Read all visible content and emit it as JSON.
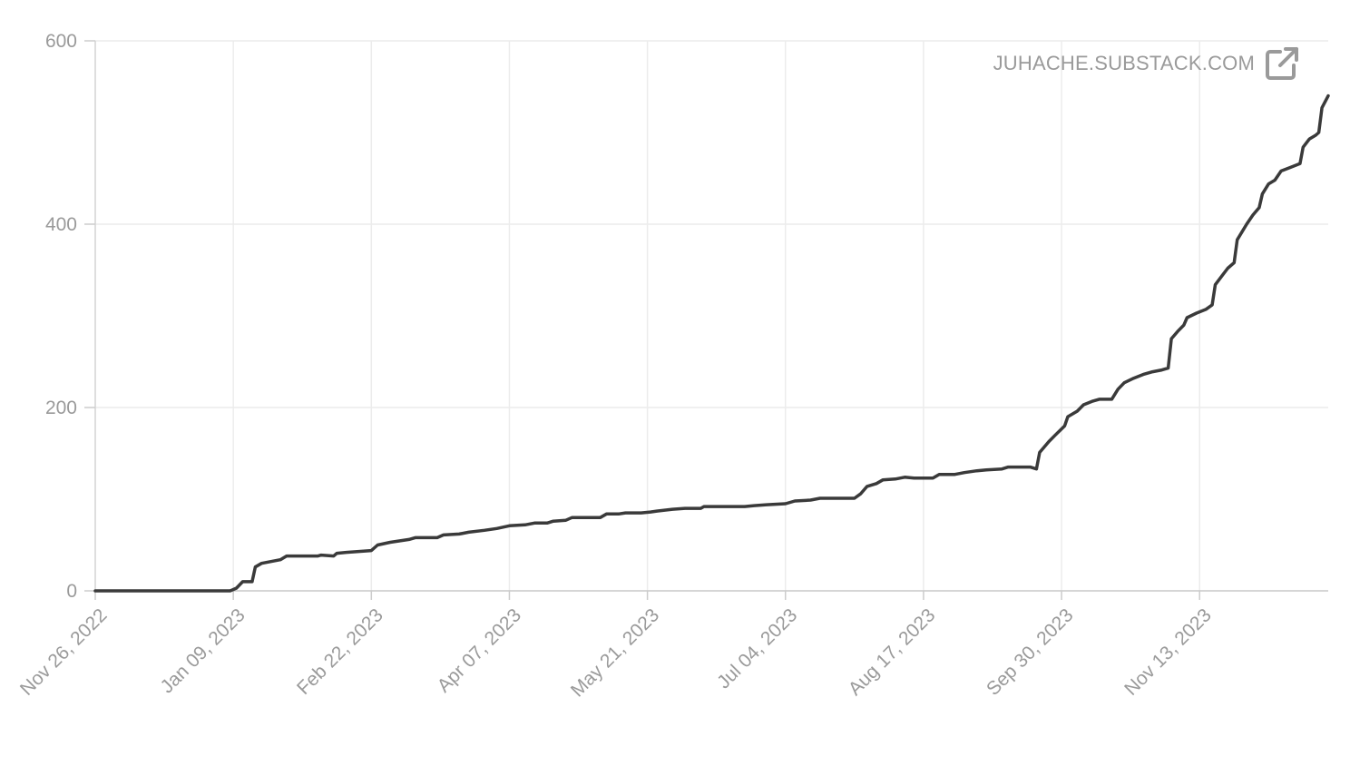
{
  "watermark": {
    "text": "JUHACHE.SUBSTACK.COM",
    "icon": "external-link-icon"
  },
  "chart_data": {
    "type": "line",
    "xlabel": "",
    "ylabel": "",
    "ylim": [
      0,
      600
    ],
    "yticks": [
      0,
      200,
      400,
      600
    ],
    "ytick_labels": [
      "0",
      "200",
      "400",
      "600"
    ],
    "xlim": [
      "2022-11-26",
      "2023-12-24"
    ],
    "xticks": [
      "2022-11-26",
      "2023-01-09",
      "2023-02-22",
      "2023-04-07",
      "2023-05-21",
      "2023-07-04",
      "2023-08-17",
      "2023-09-30",
      "2023-11-13"
    ],
    "xtick_labels": [
      "Nov 26, 2022",
      "Jan 09, 2023",
      "Feb 22, 2023",
      "Apr 07, 2023",
      "May 21, 2023",
      "Jul 04, 2023",
      "Aug 17, 2023",
      "Sep 30, 2023",
      "Nov 13, 2023"
    ],
    "grid": true,
    "line_color": "#3a3a3a",
    "series": [
      {
        "points": [
          [
            "2022-11-26",
            0
          ],
          [
            "2023-01-08",
            0
          ],
          [
            "2023-01-10",
            3
          ],
          [
            "2023-01-12",
            10
          ],
          [
            "2023-01-15",
            10
          ],
          [
            "2023-01-16",
            26
          ],
          [
            "2023-01-18",
            30
          ],
          [
            "2023-01-24",
            34
          ],
          [
            "2023-01-26",
            38
          ],
          [
            "2023-02-05",
            38
          ],
          [
            "2023-02-06",
            39
          ],
          [
            "2023-02-10",
            38
          ],
          [
            "2023-02-11",
            41
          ],
          [
            "2023-02-14",
            42
          ],
          [
            "2023-02-22",
            44
          ],
          [
            "2023-02-24",
            50
          ],
          [
            "2023-02-28",
            53
          ],
          [
            "2023-03-06",
            56
          ],
          [
            "2023-03-08",
            58
          ],
          [
            "2023-03-15",
            58
          ],
          [
            "2023-03-17",
            61
          ],
          [
            "2023-03-22",
            62
          ],
          [
            "2023-03-25",
            64
          ],
          [
            "2023-03-30",
            66
          ],
          [
            "2023-04-03",
            68
          ],
          [
            "2023-04-07",
            71
          ],
          [
            "2023-04-12",
            72
          ],
          [
            "2023-04-15",
            74
          ],
          [
            "2023-04-19",
            74
          ],
          [
            "2023-04-21",
            76
          ],
          [
            "2023-04-25",
            77
          ],
          [
            "2023-04-27",
            80
          ],
          [
            "2023-05-06",
            80
          ],
          [
            "2023-05-08",
            84
          ],
          [
            "2023-05-12",
            84
          ],
          [
            "2023-05-14",
            85
          ],
          [
            "2023-05-19",
            85
          ],
          [
            "2023-05-22",
            86
          ],
          [
            "2023-05-24",
            87
          ],
          [
            "2023-05-29",
            89
          ],
          [
            "2023-06-02",
            90
          ],
          [
            "2023-06-07",
            90
          ],
          [
            "2023-06-08",
            92
          ],
          [
            "2023-06-18",
            92
          ],
          [
            "2023-06-21",
            92
          ],
          [
            "2023-06-24",
            93
          ],
          [
            "2023-06-28",
            94
          ],
          [
            "2023-07-04",
            95
          ],
          [
            "2023-07-07",
            98
          ],
          [
            "2023-07-12",
            99
          ],
          [
            "2023-07-15",
            101
          ],
          [
            "2023-07-26",
            101
          ],
          [
            "2023-07-28",
            106
          ],
          [
            "2023-07-30",
            114
          ],
          [
            "2023-08-02",
            117
          ],
          [
            "2023-08-04",
            121
          ],
          [
            "2023-08-08",
            122
          ],
          [
            "2023-08-11",
            124
          ],
          [
            "2023-08-14",
            123
          ],
          [
            "2023-08-20",
            123
          ],
          [
            "2023-08-22",
            127
          ],
          [
            "2023-08-27",
            127
          ],
          [
            "2023-08-30",
            129
          ],
          [
            "2023-09-03",
            131
          ],
          [
            "2023-09-06",
            132
          ],
          [
            "2023-09-11",
            133
          ],
          [
            "2023-09-13",
            135
          ],
          [
            "2023-09-20",
            135
          ],
          [
            "2023-09-22",
            133
          ],
          [
            "2023-09-23",
            151
          ],
          [
            "2023-09-26",
            163
          ],
          [
            "2023-09-28",
            170
          ],
          [
            "2023-10-01",
            180
          ],
          [
            "2023-10-02",
            190
          ],
          [
            "2023-10-05",
            196
          ],
          [
            "2023-10-07",
            203
          ],
          [
            "2023-10-10",
            207
          ],
          [
            "2023-10-12",
            209
          ],
          [
            "2023-10-16",
            209
          ],
          [
            "2023-10-18",
            220
          ],
          [
            "2023-10-20",
            227
          ],
          [
            "2023-10-23",
            232
          ],
          [
            "2023-10-26",
            236
          ],
          [
            "2023-10-29",
            239
          ],
          [
            "2023-11-01",
            241
          ],
          [
            "2023-11-03",
            243
          ],
          [
            "2023-11-04",
            275
          ],
          [
            "2023-11-06",
            283
          ],
          [
            "2023-11-08",
            290
          ],
          [
            "2023-11-09",
            298
          ],
          [
            "2023-11-12",
            303
          ],
          [
            "2023-11-15",
            307
          ],
          [
            "2023-11-17",
            312
          ],
          [
            "2023-11-18",
            334
          ],
          [
            "2023-11-20",
            343
          ],
          [
            "2023-11-22",
            352
          ],
          [
            "2023-11-24",
            358
          ],
          [
            "2023-11-25",
            383
          ],
          [
            "2023-11-28",
            400
          ],
          [
            "2023-11-30",
            410
          ],
          [
            "2023-12-02",
            418
          ],
          [
            "2023-12-03",
            433
          ],
          [
            "2023-12-05",
            444
          ],
          [
            "2023-12-07",
            448
          ],
          [
            "2023-12-09",
            458
          ],
          [
            "2023-12-12",
            462
          ],
          [
            "2023-12-15",
            466
          ],
          [
            "2023-12-16",
            484
          ],
          [
            "2023-12-18",
            493
          ],
          [
            "2023-12-20",
            497
          ],
          [
            "2023-12-21",
            500
          ],
          [
            "2023-12-22",
            527
          ],
          [
            "2023-12-24",
            540
          ]
        ]
      }
    ]
  }
}
